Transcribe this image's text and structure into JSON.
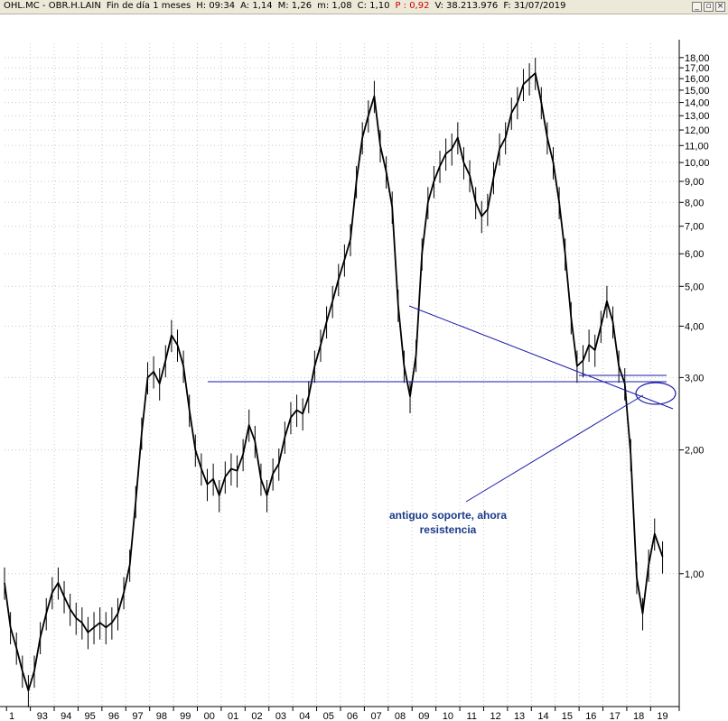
{
  "window": {
    "ticker": "OHL.MC - OBR.H.LAIN",
    "period": "Fin de día 1 meses",
    "high": "H: 09:34",
    "open": "A: 1,14",
    "max": "M: 1,26",
    "min": "m: 1,08",
    "close": "C: 1,10",
    "pct": "P : 0,92",
    "volume": "V: 38.213.976",
    "date": "F: 31/07/2019",
    "minimize_label": "_",
    "restore_label": "▫",
    "close_label": "×"
  },
  "colors": {
    "candle": "#000000",
    "trendline": "#1a1aa8",
    "annotation": "#1a3a8a",
    "grid": "#c8c8c8",
    "pct_red": "#cc0000"
  },
  "chart_data": {
    "type": "line",
    "title": "OHL.MC - OBR.H.LAIN",
    "xlabel": "",
    "ylabel": "",
    "log_scale": true,
    "grid": true,
    "ylim": [
      0.48,
      19.5
    ],
    "y_ticks": [
      "1,00",
      "2,00",
      "3,00",
      "4,00",
      "5,00",
      "6,00",
      "7,00",
      "8,00",
      "9,00",
      "10,00",
      "11,00",
      "12,00",
      "13,00",
      "14,00",
      "15,00",
      "16,00",
      "17,00",
      "18,00"
    ],
    "x_ticks": [
      "1",
      "93",
      "94",
      "95",
      "96",
      "97",
      "98",
      "99",
      "00",
      "01",
      "02",
      "03",
      "04",
      "05",
      "06",
      "07",
      "08",
      "09",
      "10",
      "11",
      "12",
      "13",
      "14",
      "15",
      "16",
      "17",
      "18",
      "19"
    ],
    "series": [
      {
        "x": [
          "1991-12",
          "1992-03",
          "1992-06",
          "1992-09",
          "1992-12",
          "1993-03",
          "1993-06",
          "1993-09",
          "1993-12",
          "1994-03",
          "1994-06",
          "1994-09",
          "1994-12",
          "1995-03",
          "1995-06",
          "1995-09",
          "1995-12",
          "1996-03",
          "1996-06",
          "1996-09",
          "1996-12",
          "1997-03",
          "1997-06",
          "1997-09",
          "1997-12",
          "1998-03",
          "1998-06",
          "1998-09",
          "1998-12",
          "1999-03",
          "1999-06",
          "1999-09",
          "1999-12",
          "2000-03",
          "2000-06",
          "2000-09",
          "2000-12",
          "2001-03",
          "2001-06",
          "2001-09",
          "2001-12",
          "2002-03",
          "2002-06",
          "2002-09",
          "2002-12",
          "2003-03",
          "2003-06",
          "2003-09",
          "2003-12",
          "2004-03",
          "2004-06",
          "2004-09",
          "2004-12",
          "2005-03",
          "2005-06",
          "2005-09",
          "2005-12",
          "2006-03",
          "2006-06",
          "2006-09",
          "2006-12",
          "2007-03",
          "2007-06",
          "2007-09",
          "2007-12",
          "2008-03",
          "2008-06",
          "2008-09",
          "2008-12",
          "2009-03",
          "2009-06",
          "2009-09",
          "2009-12",
          "2010-03",
          "2010-06",
          "2010-09",
          "2010-12",
          "2011-03",
          "2011-06",
          "2011-09",
          "2011-12",
          "2012-03",
          "2012-06",
          "2012-09",
          "2012-12",
          "2013-03",
          "2013-06",
          "2013-09",
          "2013-12",
          "2014-03",
          "2014-06",
          "2014-09",
          "2014-12",
          "2015-03",
          "2015-06",
          "2015-09",
          "2015-12",
          "2016-03",
          "2016-06",
          "2016-09",
          "2016-12",
          "2017-03",
          "2017-06",
          "2017-09",
          "2017-12",
          "2018-03",
          "2018-06",
          "2018-09",
          "2018-12",
          "2019-03",
          "2019-07"
        ],
        "y": [
          0.95,
          0.74,
          0.66,
          0.58,
          0.52,
          0.58,
          0.7,
          0.8,
          0.9,
          0.95,
          0.88,
          0.82,
          0.78,
          0.76,
          0.72,
          0.74,
          0.76,
          0.74,
          0.76,
          0.8,
          0.9,
          1.05,
          1.5,
          2.2,
          3.0,
          3.1,
          2.9,
          3.3,
          3.8,
          3.6,
          3.2,
          2.5,
          2.0,
          1.8,
          1.65,
          1.7,
          1.55,
          1.72,
          1.8,
          1.78,
          1.95,
          2.3,
          2.1,
          1.7,
          1.55,
          1.75,
          1.85,
          2.15,
          2.4,
          2.5,
          2.45,
          2.7,
          3.2,
          3.6,
          4.1,
          4.6,
          5.2,
          5.8,
          6.5,
          9.0,
          11.5,
          13.0,
          14.5,
          11.0,
          9.5,
          7.8,
          4.5,
          3.2,
          2.7,
          3.4,
          6.0,
          8.0,
          9.0,
          9.8,
          10.5,
          10.8,
          11.5,
          10.0,
          9.3,
          8.0,
          7.4,
          7.7,
          9.2,
          10.8,
          11.5,
          13.2,
          14.0,
          15.5,
          16.0,
          16.5,
          14.0,
          11.5,
          10.0,
          8.0,
          6.0,
          4.2,
          3.2,
          3.3,
          3.6,
          3.5,
          4.0,
          4.6,
          4.1,
          3.2,
          2.9,
          1.95,
          0.98,
          0.8,
          1.05,
          1.25,
          1.1
        ]
      }
    ]
  },
  "annotation": {
    "line1": "antiguo soporte, ahora",
    "line2": "resistencia"
  }
}
